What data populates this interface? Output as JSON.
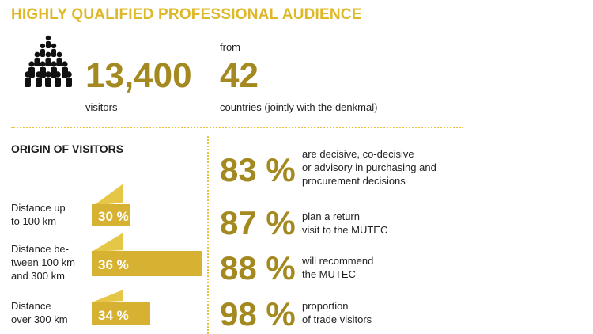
{
  "headline": "HIGHLY QUALIFIED PROFESSIONAL AUDIENCE",
  "stats": {
    "visitors_number": "13,400",
    "visitors_label": "visitors",
    "from_label": "from",
    "countries_number": "42",
    "countries_label": "countries (jointly with the denkmal)"
  },
  "origin": {
    "title": "ORIGIN OF VISITORS",
    "rows": [
      {
        "label_line1": "Distance up",
        "label_line2": "to 100 km",
        "label_line3": "",
        "value_text": "30 %",
        "value": 30
      },
      {
        "label_line1": "Distance be-",
        "label_line2": "tween 100 km",
        "label_line3": "and 300 km",
        "value_text": "36 %",
        "value": 36
      },
      {
        "label_line1": "Distance",
        "label_line2": "over 300 km",
        "label_line3": "",
        "value_text": "34 %",
        "value": 34
      }
    ]
  },
  "facts": [
    {
      "percent": "83 %",
      "line1": "are decisive, co-decisive",
      "line2": "or advisory in purchasing and",
      "line3": "procurement decisions"
    },
    {
      "percent": "87 %",
      "line1": "plan a return",
      "line2": "visit to the MUTEC",
      "line3": ""
    },
    {
      "percent": "88 %",
      "line1": "will recommend",
      "line2": "the MUTEC",
      "line3": ""
    },
    {
      "percent": "98 %",
      "line1": "proportion",
      "line2": "of trade visitors",
      "line3": ""
    }
  ],
  "colors": {
    "gold_dark": "#a3891f",
    "gold_light": "#dfb82a",
    "bar_light": "#e6c646",
    "bar_dark": "#c9a62a"
  },
  "icons": {
    "audience": "people-group-icon"
  }
}
